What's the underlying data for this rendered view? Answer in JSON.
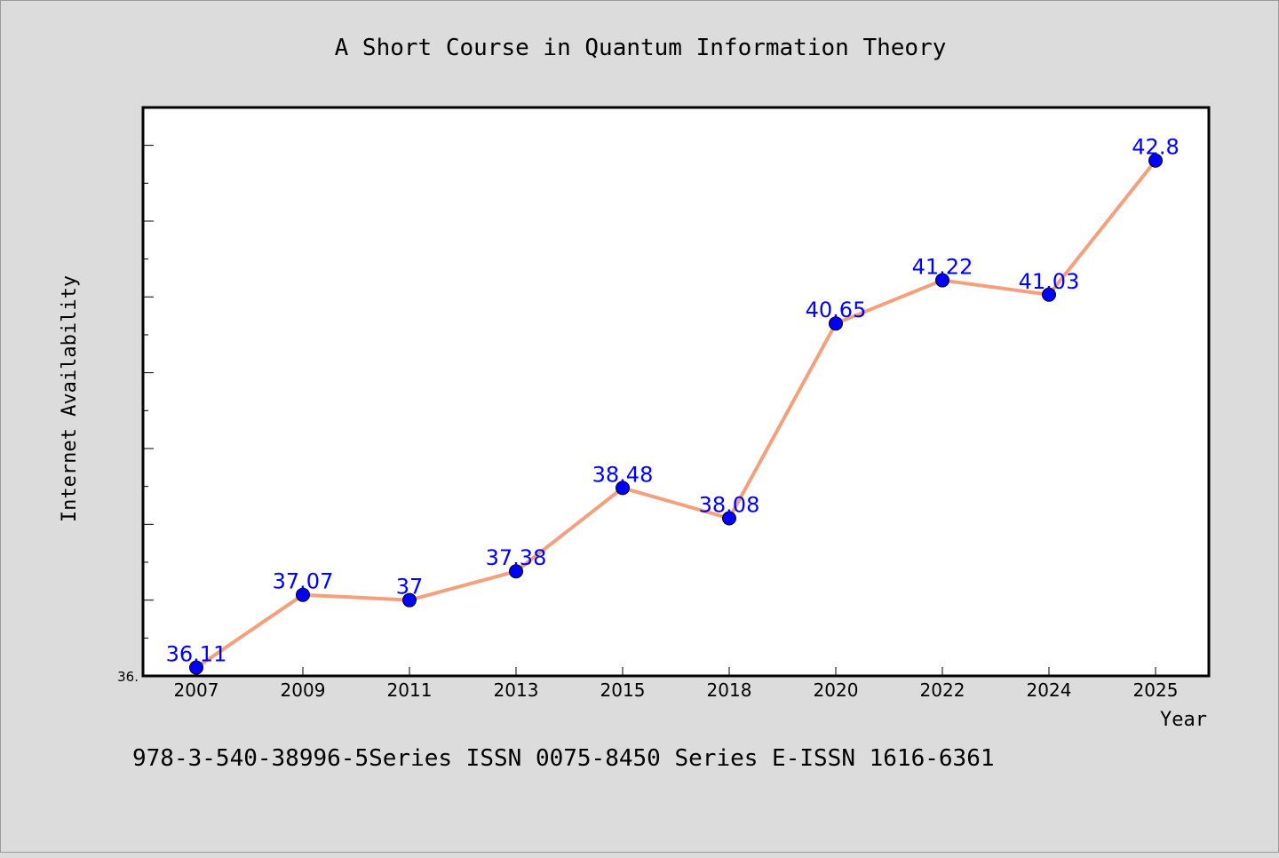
{
  "colors": {
    "line": "#f4a07d",
    "marker": "#0000ff",
    "data_label": "#0000ff",
    "background": "#dcdcdc",
    "plot_background": "#ffffff"
  },
  "footer_text": "978-3-540-38996-5Series ISSN 0075-8450 Series E-ISSN 1616-6361",
  "chart_data": {
    "type": "line",
    "title": "A Short Course in Quantum Information Theory",
    "xlabel": "Year",
    "ylabel": "Internet Availability",
    "categories": [
      "2007",
      "2009",
      "2011",
      "2013",
      "2015",
      "2018",
      "2020",
      "2022",
      "2024",
      "2025"
    ],
    "series": [
      {
        "values": [
          36.11,
          37.07,
          37,
          37.38,
          38.48,
          38.08,
          40.65,
          41.22,
          41.03,
          42.8
        ],
        "labels": [
          "36.11",
          "37.07",
          "37",
          "37.38",
          "38.48",
          "38.08",
          "40.65",
          "41.22",
          "41.03",
          "42.8"
        ]
      }
    ],
    "ylim": [
      36,
      43.5
    ],
    "y_tick_label": "36.",
    "grid": false,
    "legend": "none"
  }
}
